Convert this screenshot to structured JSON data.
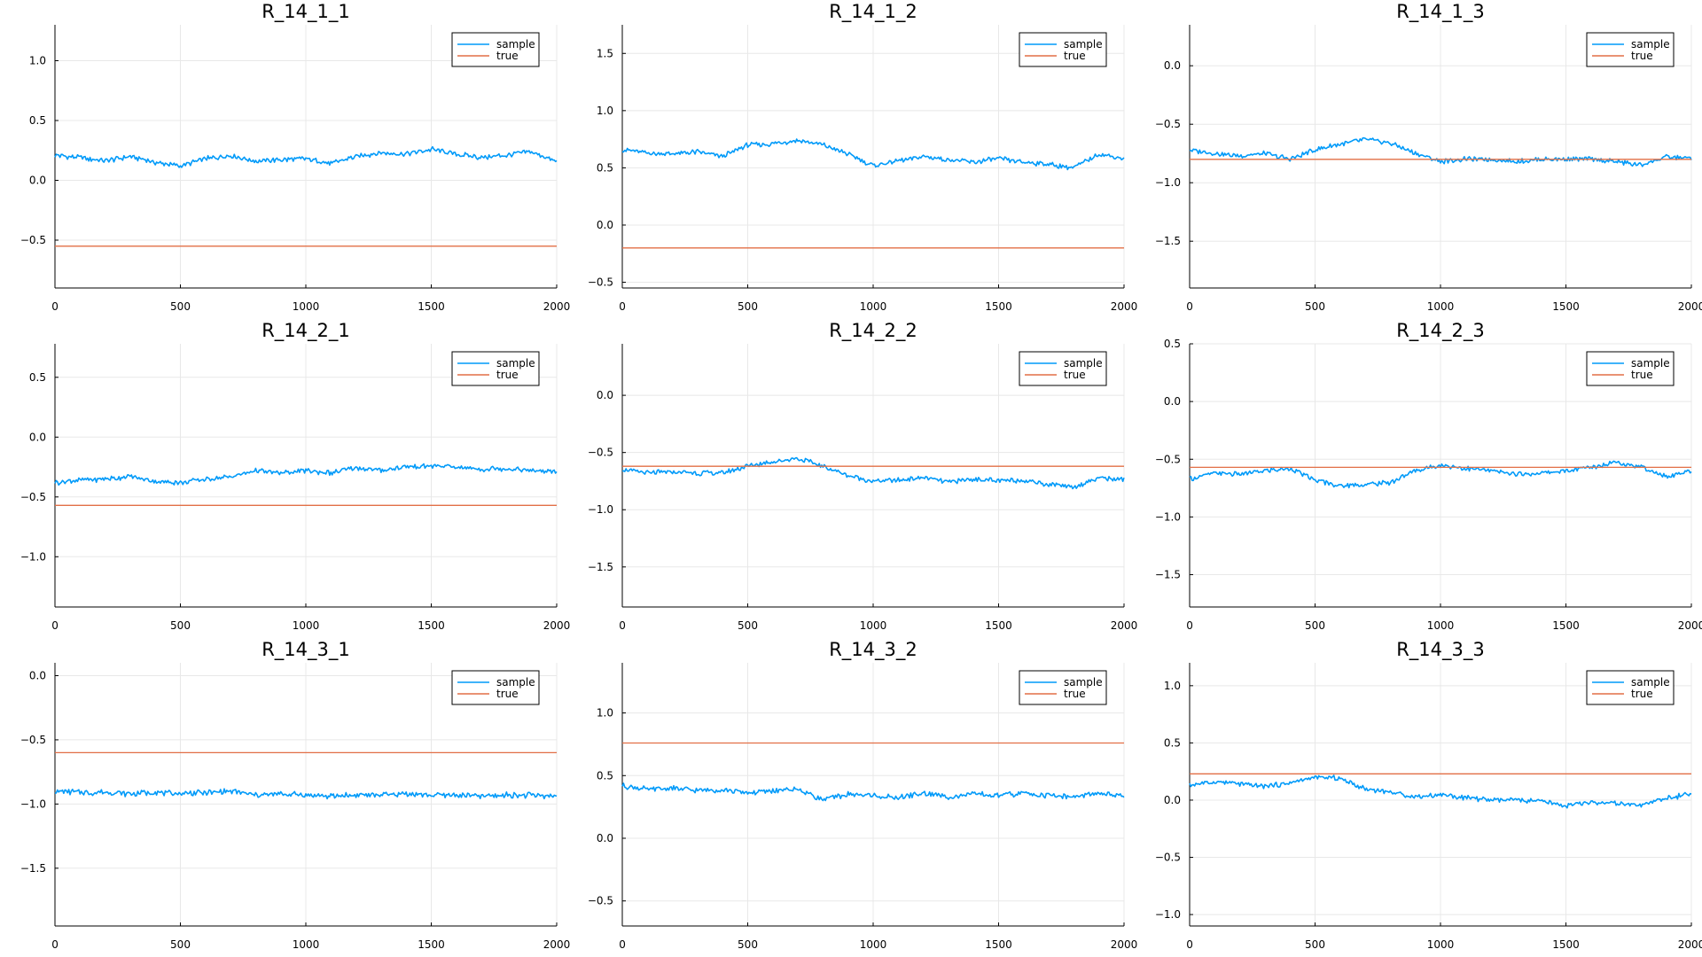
{
  "chart_data": [
    {
      "type": "line",
      "title": "R_14_1_1",
      "xlim": [
        0,
        2000
      ],
      "ylim": [
        -0.9,
        1.3
      ],
      "xticks": [
        0,
        500,
        1000,
        1500,
        2000
      ],
      "yticks": [
        -0.5,
        0.0,
        0.5,
        1.0
      ],
      "ytick_labels": [
        "−0.5",
        "0.0",
        "0.5",
        "1.0"
      ],
      "grid": true,
      "legend": "top-right",
      "series": [
        {
          "name": "sample",
          "color": "#009AF9",
          "x": [
            0,
            100,
            200,
            300,
            400,
            500,
            600,
            700,
            800,
            900,
            1000,
            1100,
            1200,
            1300,
            1400,
            1500,
            1600,
            1700,
            1800,
            1900,
            2000
          ],
          "y": [
            0.21,
            0.19,
            0.16,
            0.2,
            0.15,
            0.12,
            0.18,
            0.21,
            0.16,
            0.17,
            0.18,
            0.14,
            0.2,
            0.23,
            0.22,
            0.26,
            0.22,
            0.19,
            0.21,
            0.24,
            0.15
          ]
        },
        {
          "name": "true",
          "color": "#E26F46",
          "x": [
            0,
            2000
          ],
          "y": [
            -0.55,
            -0.55
          ]
        }
      ]
    },
    {
      "type": "line",
      "title": "R_14_1_2",
      "xlim": [
        0,
        2000
      ],
      "ylim": [
        -0.55,
        1.75
      ],
      "xticks": [
        0,
        500,
        1000,
        1500,
        2000
      ],
      "yticks": [
        -0.5,
        0.0,
        0.5,
        1.0,
        1.5
      ],
      "ytick_labels": [
        "−0.5",
        "0.0",
        "0.5",
        "1.0",
        "1.5"
      ],
      "grid": true,
      "legend": "top-right",
      "series": [
        {
          "name": "sample",
          "color": "#009AF9",
          "x": [
            0,
            100,
            200,
            300,
            400,
            500,
            600,
            700,
            800,
            900,
            1000,
            1100,
            1200,
            1300,
            1400,
            1500,
            1600,
            1700,
            1800,
            1900,
            2000
          ],
          "y": [
            0.66,
            0.63,
            0.62,
            0.64,
            0.6,
            0.7,
            0.71,
            0.74,
            0.7,
            0.62,
            0.52,
            0.56,
            0.6,
            0.57,
            0.55,
            0.58,
            0.55,
            0.53,
            0.5,
            0.62,
            0.58
          ]
        },
        {
          "name": "true",
          "color": "#E26F46",
          "x": [
            0,
            2000
          ],
          "y": [
            -0.2,
            -0.2
          ]
        }
      ]
    },
    {
      "type": "line",
      "title": "R_14_1_3",
      "xlim": [
        0,
        2000
      ],
      "ylim": [
        -1.9,
        0.35
      ],
      "xticks": [
        0,
        500,
        1000,
        1500,
        2000
      ],
      "yticks": [
        -1.5,
        -1.0,
        -0.5,
        0.0
      ],
      "ytick_labels": [
        "−1.5",
        "−1.0",
        "−0.5",
        "0.0"
      ],
      "grid": true,
      "legend": "top-right",
      "series": [
        {
          "name": "sample",
          "color": "#009AF9",
          "x": [
            0,
            100,
            200,
            300,
            400,
            500,
            600,
            700,
            800,
            900,
            1000,
            1100,
            1200,
            1300,
            1400,
            1500,
            1600,
            1700,
            1800,
            1900,
            2000
          ],
          "y": [
            -0.72,
            -0.75,
            -0.77,
            -0.75,
            -0.8,
            -0.72,
            -0.67,
            -0.63,
            -0.66,
            -0.75,
            -0.82,
            -0.8,
            -0.8,
            -0.82,
            -0.8,
            -0.8,
            -0.8,
            -0.82,
            -0.85,
            -0.78,
            -0.79
          ]
        },
        {
          "name": "true",
          "color": "#E26F46",
          "x": [
            0,
            2000
          ],
          "y": [
            -0.8,
            -0.8
          ]
        }
      ]
    },
    {
      "type": "line",
      "title": "R_14_2_1",
      "xlim": [
        0,
        2000
      ],
      "ylim": [
        -1.42,
        0.78
      ],
      "xticks": [
        0,
        500,
        1000,
        1500,
        2000
      ],
      "yticks": [
        -1.0,
        -0.5,
        0.0,
        0.5
      ],
      "ytick_labels": [
        "−1.0",
        "−0.5",
        "0.0",
        "0.5"
      ],
      "grid": true,
      "legend": "top-right",
      "series": [
        {
          "name": "sample",
          "color": "#009AF9",
          "x": [
            0,
            100,
            200,
            300,
            400,
            500,
            600,
            700,
            800,
            900,
            1000,
            1100,
            1200,
            1300,
            1400,
            1500,
            1600,
            1700,
            1800,
            1900,
            2000
          ],
          "y": [
            -0.38,
            -0.36,
            -0.35,
            -0.33,
            -0.37,
            -0.38,
            -0.35,
            -0.33,
            -0.28,
            -0.3,
            -0.28,
            -0.3,
            -0.26,
            -0.28,
            -0.25,
            -0.24,
            -0.25,
            -0.27,
            -0.26,
            -0.28,
            -0.29
          ]
        },
        {
          "name": "true",
          "color": "#E26F46",
          "x": [
            0,
            2000
          ],
          "y": [
            -0.57,
            -0.57
          ]
        }
      ]
    },
    {
      "type": "line",
      "title": "R_14_2_2",
      "xlim": [
        0,
        2000
      ],
      "ylim": [
        -1.85,
        0.45
      ],
      "xticks": [
        0,
        500,
        1000,
        1500,
        2000
      ],
      "yticks": [
        -1.5,
        -1.0,
        -0.5,
        0.0
      ],
      "ytick_labels": [
        "−1.5",
        "−1.0",
        "−0.5",
        "0.0"
      ],
      "grid": true,
      "legend": "top-right",
      "series": [
        {
          "name": "sample",
          "color": "#009AF9",
          "x": [
            0,
            100,
            200,
            300,
            400,
            500,
            600,
            700,
            800,
            900,
            1000,
            1100,
            1200,
            1300,
            1400,
            1500,
            1600,
            1700,
            1800,
            1900,
            2000
          ],
          "y": [
            -0.65,
            -0.68,
            -0.67,
            -0.68,
            -0.68,
            -0.62,
            -0.58,
            -0.55,
            -0.62,
            -0.7,
            -0.75,
            -0.74,
            -0.72,
            -0.76,
            -0.73,
            -0.75,
            -0.74,
            -0.78,
            -0.8,
            -0.72,
            -0.74
          ]
        },
        {
          "name": "true",
          "color": "#E26F46",
          "x": [
            0,
            2000
          ],
          "y": [
            -0.62,
            -0.62
          ]
        }
      ]
    },
    {
      "type": "line",
      "title": "R_14_2_3",
      "xlim": [
        0,
        2000
      ],
      "ylim": [
        -1.78,
        0.5
      ],
      "xticks": [
        0,
        500,
        1000,
        1500,
        2000
      ],
      "yticks": [
        -1.5,
        -1.0,
        -0.5,
        0.0,
        0.5
      ],
      "ytick_labels": [
        "−1.5",
        "−1.0",
        "−0.5",
        "0.0",
        "0.5"
      ],
      "grid": true,
      "legend": "top-right",
      "series": [
        {
          "name": "sample",
          "color": "#009AF9",
          "x": [
            0,
            100,
            200,
            300,
            400,
            500,
            600,
            700,
            800,
            900,
            1000,
            1100,
            1200,
            1300,
            1400,
            1500,
            1600,
            1700,
            1800,
            1900,
            2000
          ],
          "y": [
            -0.67,
            -0.62,
            -0.63,
            -0.6,
            -0.58,
            -0.68,
            -0.73,
            -0.72,
            -0.7,
            -0.6,
            -0.55,
            -0.58,
            -0.6,
            -0.63,
            -0.62,
            -0.6,
            -0.57,
            -0.52,
            -0.57,
            -0.65,
            -0.6
          ]
        },
        {
          "name": "true",
          "color": "#E26F46",
          "x": [
            0,
            2000
          ],
          "y": [
            -0.57,
            -0.57
          ]
        }
      ]
    },
    {
      "type": "line",
      "title": "R_14_3_1",
      "xlim": [
        0,
        2000
      ],
      "ylim": [
        -1.95,
        0.1
      ],
      "xticks": [
        0,
        500,
        1000,
        1500,
        2000
      ],
      "yticks": [
        -1.5,
        -1.0,
        -0.5,
        0.0
      ],
      "ytick_labels": [
        "−1.5",
        "−1.0",
        "−0.5",
        "0.0"
      ],
      "grid": true,
      "legend": "top-right",
      "series": [
        {
          "name": "sample",
          "color": "#009AF9",
          "x": [
            0,
            100,
            200,
            300,
            400,
            500,
            600,
            700,
            800,
            900,
            1000,
            1100,
            1200,
            1300,
            1400,
            1500,
            1600,
            1700,
            1800,
            1900,
            2000
          ],
          "y": [
            -0.9,
            -0.91,
            -0.91,
            -0.92,
            -0.91,
            -0.92,
            -0.91,
            -0.9,
            -0.93,
            -0.92,
            -0.93,
            -0.94,
            -0.93,
            -0.93,
            -0.92,
            -0.93,
            -0.93,
            -0.94,
            -0.93,
            -0.93,
            -0.94
          ]
        },
        {
          "name": "true",
          "color": "#E26F46",
          "x": [
            0,
            2000
          ],
          "y": [
            -0.6,
            -0.6
          ]
        }
      ]
    },
    {
      "type": "line",
      "title": "R_14_3_2",
      "xlim": [
        0,
        2000
      ],
      "ylim": [
        -0.7,
        1.4
      ],
      "xticks": [
        0,
        500,
        1000,
        1500,
        2000
      ],
      "yticks": [
        -0.5,
        0.0,
        0.5,
        1.0
      ],
      "ytick_labels": [
        "−0.5",
        "0.0",
        "0.5",
        "1.0"
      ],
      "grid": true,
      "legend": "top-right",
      "series": [
        {
          "name": "sample",
          "color": "#009AF9",
          "x": [
            0,
            100,
            200,
            300,
            400,
            500,
            600,
            700,
            800,
            900,
            1000,
            1100,
            1200,
            1300,
            1400,
            1500,
            1600,
            1700,
            1800,
            1900,
            2000
          ],
          "y": [
            0.42,
            0.39,
            0.4,
            0.38,
            0.39,
            0.36,
            0.38,
            0.39,
            0.31,
            0.35,
            0.34,
            0.32,
            0.36,
            0.33,
            0.35,
            0.34,
            0.36,
            0.34,
            0.33,
            0.36,
            0.33
          ]
        },
        {
          "name": "true",
          "color": "#E26F46",
          "x": [
            0,
            2000
          ],
          "y": [
            0.76,
            0.76
          ]
        }
      ]
    },
    {
      "type": "line",
      "title": "R_14_3_3",
      "xlim": [
        0,
        2000
      ],
      "ylim": [
        -1.1,
        1.2
      ],
      "xticks": [
        0,
        500,
        1000,
        1500,
        2000
      ],
      "yticks": [
        -1.0,
        -0.5,
        0.0,
        0.5,
        1.0
      ],
      "ytick_labels": [
        "−1.0",
        "−0.5",
        "0.0",
        "0.5",
        "1.0"
      ],
      "grid": true,
      "legend": "top-right",
      "series": [
        {
          "name": "sample",
          "color": "#009AF9",
          "x": [
            0,
            100,
            200,
            300,
            400,
            500,
            600,
            700,
            800,
            900,
            1000,
            1100,
            1200,
            1300,
            1400,
            1500,
            1600,
            1700,
            1800,
            1900,
            2000
          ],
          "y": [
            0.13,
            0.16,
            0.14,
            0.12,
            0.15,
            0.2,
            0.19,
            0.1,
            0.07,
            0.03,
            0.05,
            0.02,
            0.0,
            0.0,
            -0.01,
            -0.05,
            -0.02,
            -0.03,
            -0.05,
            0.02,
            0.05
          ]
        },
        {
          "name": "true",
          "color": "#E26F46",
          "x": [
            0,
            2000
          ],
          "y": [
            0.23,
            0.23
          ]
        }
      ]
    }
  ]
}
